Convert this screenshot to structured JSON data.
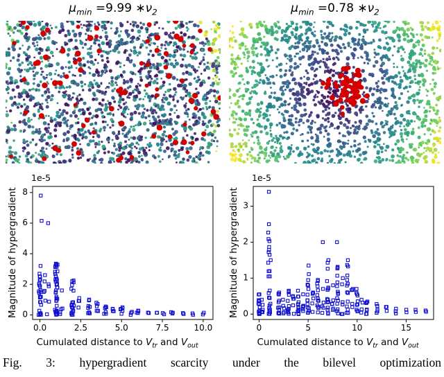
{
  "figure": {
    "background": "#ffffff",
    "caption": "Fig. 3: hypergradient scarcity under the bilevel optimization",
    "titles": [
      {
        "mu": "μ",
        "mu_sub": "min",
        "rest": " =9.99 ∗",
        "nu": "ν",
        "nu_sub": "2"
      },
      {
        "mu": "μ",
        "mu_sub": "min",
        "rest": " =0.78 ∗",
        "nu": "ν",
        "nu_sub": "2"
      }
    ]
  },
  "chart_data": [
    {
      "type": "scatter",
      "name": "graph-node-field-left",
      "title": "μ_min = 9.99 * ν_2",
      "description": "2D graph node cloud, viridis-colored nodes, red highlighted nodes spread uniformly",
      "n_points": 1700,
      "seed": 7,
      "color_mode": "mixed-viridis",
      "colormap_stops": [
        "#440154",
        "#3b528b",
        "#21918c",
        "#5ec962",
        "#fde725"
      ],
      "highlight": "#d40000",
      "n_red": 80,
      "red_distribution": "uniform"
    },
    {
      "type": "scatter",
      "name": "graph-node-field-right",
      "title": "μ_min = 0.78 * ν_2",
      "description": "2D graph node cloud, radial viridis coloring (dark center, yellow corners), red highlighted nodes clustered at center",
      "n_points": 1700,
      "seed": 11,
      "color_mode": "radial-viridis",
      "colormap_stops": [
        "#440154",
        "#3b528b",
        "#21918c",
        "#5ec962",
        "#fde725"
      ],
      "highlight": "#d40000",
      "n_red": 58,
      "red_distribution": "central-cluster",
      "red_center": [
        0.56,
        0.46
      ],
      "red_sigma": 0.055
    },
    {
      "type": "scatter",
      "name": "hypergradient-vs-distance-left",
      "marker": "open-square",
      "color": "#0f0fd0",
      "offset_text": "1e-5",
      "ylabel": "Magnitude of hypergradient",
      "xlabel": "Cumulated distance to Vtr and Vout",
      "xlabel_parts": {
        "pre": "Cumulated distance to ",
        "v1": "V",
        "s1": "tr",
        "mid": " and ",
        "v2": "V",
        "s2": "out"
      },
      "xlim": [
        -0.45,
        10.6
      ],
      "ylim": [
        -0.3,
        8.4
      ],
      "xticks": [
        0,
        2.5,
        5,
        7.5,
        10
      ],
      "xtick_labels": [
        "0.0",
        "2.5",
        "5.0",
        "7.5",
        "10.0"
      ],
      "yticks": [
        0,
        2,
        4,
        6,
        8
      ],
      "ytick_labels": [
        "0",
        "2",
        "4",
        "6",
        "8"
      ],
      "seed": 3,
      "columns": [
        [
          0,
          3.2,
          26
        ],
        [
          0.25,
          2.6,
          5
        ],
        [
          0.5,
          2.0,
          4
        ],
        [
          1,
          3.35,
          38
        ],
        [
          1.3,
          1.6,
          5
        ],
        [
          2,
          2.25,
          20
        ],
        [
          2.35,
          1.1,
          4
        ],
        [
          3,
          1.0,
          8
        ],
        [
          3.5,
          0.8,
          6
        ],
        [
          4,
          0.55,
          6
        ],
        [
          4.5,
          0.4,
          4
        ],
        [
          5,
          0.5,
          6
        ],
        [
          5.6,
          0.2,
          3
        ],
        [
          6,
          0.28,
          4
        ],
        [
          6.6,
          0.15,
          2
        ],
        [
          7.1,
          0.14,
          2
        ],
        [
          7.6,
          0.12,
          2
        ],
        [
          8.1,
          0.18,
          3
        ],
        [
          8.8,
          0.12,
          2
        ],
        [
          9.4,
          0.1,
          2
        ],
        [
          10,
          0.14,
          2
        ]
      ],
      "outliers": [
        [
          0.05,
          7.8
        ],
        [
          0.1,
          6.15
        ],
        [
          0.5,
          6.0
        ]
      ]
    },
    {
      "type": "scatter",
      "name": "hypergradient-vs-distance-right",
      "marker": "open-square",
      "color": "#0f0fd0",
      "offset_text": "1e-5",
      "ylabel": "Magnitude of hypergradient",
      "xlabel": "Cumulated distance to Vtr and Vout",
      "xlabel_parts": {
        "pre": "Cumulated distance to ",
        "v1": "V",
        "s1": "tr",
        "mid": " and ",
        "v2": "V",
        "s2": "out"
      },
      "xlim": [
        -0.6,
        17.8
      ],
      "ylim": [
        -0.15,
        3.55
      ],
      "xticks": [
        0,
        5,
        10,
        15
      ],
      "xtick_labels": [
        "0",
        "5",
        "10",
        "15"
      ],
      "yticks": [
        0,
        1,
        2,
        3
      ],
      "ytick_labels": [
        "0",
        "1",
        "2",
        "3"
      ],
      "seed": 5,
      "columns": [
        [
          0,
          0.55,
          16
        ],
        [
          0.3,
          0.4,
          5
        ],
        [
          1,
          2.5,
          20
        ],
        [
          1.15,
          1.5,
          6
        ],
        [
          2,
          0.6,
          12
        ],
        [
          2.5,
          0.4,
          5
        ],
        [
          3,
          0.65,
          12
        ],
        [
          3.5,
          0.5,
          6
        ],
        [
          4,
          0.65,
          12
        ],
        [
          4.5,
          0.55,
          6
        ],
        [
          5,
          1.35,
          15
        ],
        [
          5.5,
          0.6,
          6
        ],
        [
          6,
          0.95,
          13
        ],
        [
          6.5,
          0.7,
          5
        ],
        [
          7,
          1.5,
          15
        ],
        [
          7.5,
          0.8,
          6
        ],
        [
          8,
          2.0,
          16
        ],
        [
          8.5,
          1.0,
          6
        ],
        [
          9,
          1.5,
          14
        ],
        [
          9.5,
          0.7,
          5
        ],
        [
          10,
          0.7,
          10
        ],
        [
          10.5,
          0.4,
          4
        ],
        [
          11,
          0.35,
          7
        ],
        [
          12,
          0.28,
          5
        ],
        [
          13,
          0.2,
          4
        ],
        [
          14,
          0.15,
          3
        ],
        [
          15,
          0.12,
          2
        ],
        [
          16,
          0.12,
          2
        ],
        [
          17,
          0.1,
          2
        ]
      ],
      "outliers": [
        [
          1,
          3.4
        ],
        [
          6.5,
          2.0
        ]
      ]
    }
  ]
}
